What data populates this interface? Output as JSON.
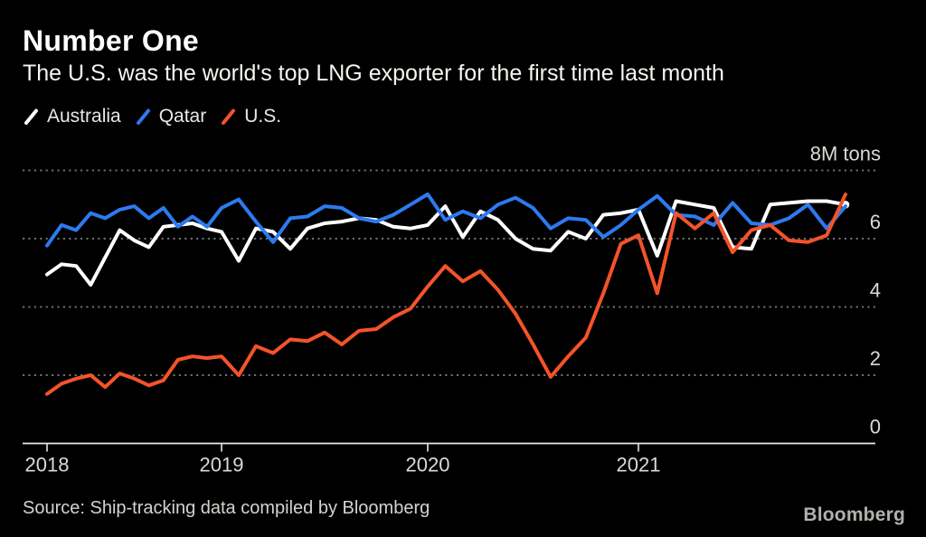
{
  "header": {
    "title": "Number One",
    "subtitle": "The U.S. was the world's top LNG exporter for the first time last month"
  },
  "legend": [
    {
      "label": "Australia",
      "color": "#ffffff"
    },
    {
      "label": "Qatar",
      "color": "#2d7af0"
    },
    {
      "label": "U.S.",
      "color": "#f4532a"
    }
  ],
  "footer": {
    "source": "Source: Ship-tracking data compiled by Bloomberg",
    "logo": "Bloomberg"
  },
  "colors": {
    "background": "#000000",
    "grid": "#6e6e6e",
    "axis_text": "#dcdad5"
  },
  "chart_data": {
    "type": "line",
    "frequency": "monthly",
    "x_start": "2018-01",
    "x_end": "2021-12",
    "x_tick_labels": [
      "2018",
      "2019",
      "2020",
      "2021"
    ],
    "y_axis": {
      "unit": "M tons",
      "ticks": [
        8,
        6,
        4,
        2,
        0
      ],
      "tick_labels": [
        "8M tons",
        "6",
        "4",
        "2",
        "0"
      ],
      "ylim": [
        0,
        8
      ]
    },
    "grid": "horizontal-dotted",
    "legend_position": "top-left",
    "series": [
      {
        "name": "Australia",
        "color": "#ffffff",
        "end_dot": true,
        "values": [
          4.95,
          5.25,
          5.2,
          4.65,
          5.45,
          6.25,
          5.95,
          5.75,
          6.35,
          6.4,
          6.45,
          6.3,
          6.2,
          5.35,
          6.3,
          6.2,
          5.7,
          6.3,
          6.45,
          6.5,
          6.6,
          6.55,
          6.35,
          6.3,
          6.4,
          6.95,
          6.05,
          6.8,
          6.55,
          6.0,
          5.7,
          5.65,
          6.2,
          6.0,
          6.7,
          6.75,
          6.85,
          5.5,
          7.1,
          7.0,
          6.9,
          5.75,
          5.7,
          7.0,
          7.05,
          7.1,
          7.1,
          7.0
        ]
      },
      {
        "name": "Qatar",
        "color": "#2d7af0",
        "end_dot": false,
        "values": [
          5.8,
          6.4,
          6.25,
          6.75,
          6.6,
          6.85,
          6.95,
          6.6,
          6.9,
          6.35,
          6.65,
          6.35,
          6.9,
          7.15,
          6.5,
          5.9,
          6.6,
          6.65,
          6.95,
          6.9,
          6.6,
          6.5,
          6.7,
          7.0,
          7.3,
          6.55,
          6.8,
          6.6,
          7.0,
          7.2,
          6.9,
          6.3,
          6.6,
          6.55,
          6.05,
          6.4,
          6.85,
          7.25,
          6.7,
          6.65,
          6.4,
          7.05,
          6.45,
          6.4,
          6.6,
          7.0,
          6.3,
          6.95
        ]
      },
      {
        "name": "U.S.",
        "color": "#f4532a",
        "end_dot": false,
        "values": [
          1.45,
          1.75,
          1.9,
          2.0,
          1.65,
          2.05,
          1.9,
          1.7,
          1.85,
          2.45,
          2.55,
          2.5,
          2.55,
          2.0,
          2.85,
          2.65,
          3.05,
          3.0,
          3.25,
          2.9,
          3.3,
          3.35,
          3.7,
          3.95,
          4.6,
          5.2,
          4.75,
          5.05,
          4.5,
          3.8,
          2.9,
          1.95,
          2.55,
          3.1,
          4.4,
          5.85,
          6.1,
          4.4,
          6.75,
          6.3,
          6.75,
          5.6,
          6.25,
          6.4,
          5.95,
          5.9,
          6.1,
          7.3
        ]
      }
    ]
  }
}
